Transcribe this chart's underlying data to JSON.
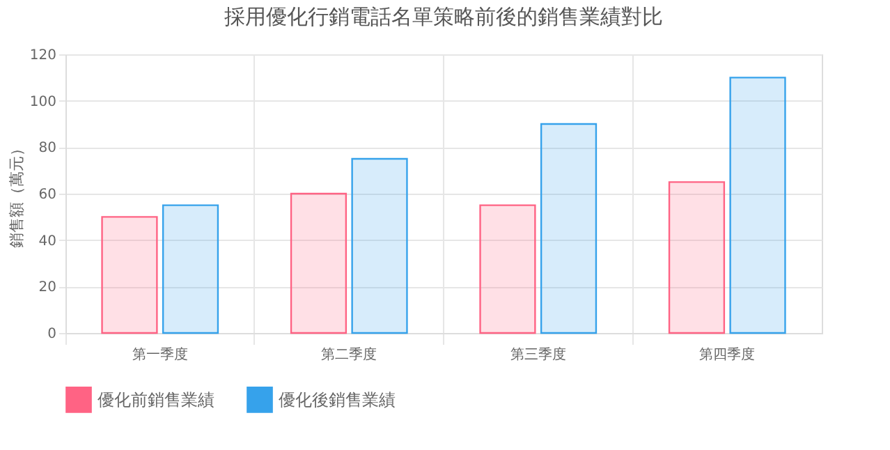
{
  "chart_data": {
    "type": "bar",
    "title": "採用優化行銷電話名單策略前後的銷售業績對比",
    "ylabel": "銷售額（萬元）",
    "categories": [
      "第一季度",
      "第二季度",
      "第三季度",
      "第四季度"
    ],
    "series": [
      {
        "name": "優化前銷售業績",
        "color": "#ff6384",
        "values": [
          50,
          60,
          55,
          65
        ]
      },
      {
        "name": "優化後銷售業績",
        "color": "#36a2eb",
        "values": [
          55,
          75,
          90,
          110
        ]
      }
    ],
    "ylim": [
      0,
      120
    ],
    "yticks": [
      0,
      20,
      40,
      60,
      80,
      100,
      120
    ],
    "grid": true,
    "legend": "bottom"
  }
}
